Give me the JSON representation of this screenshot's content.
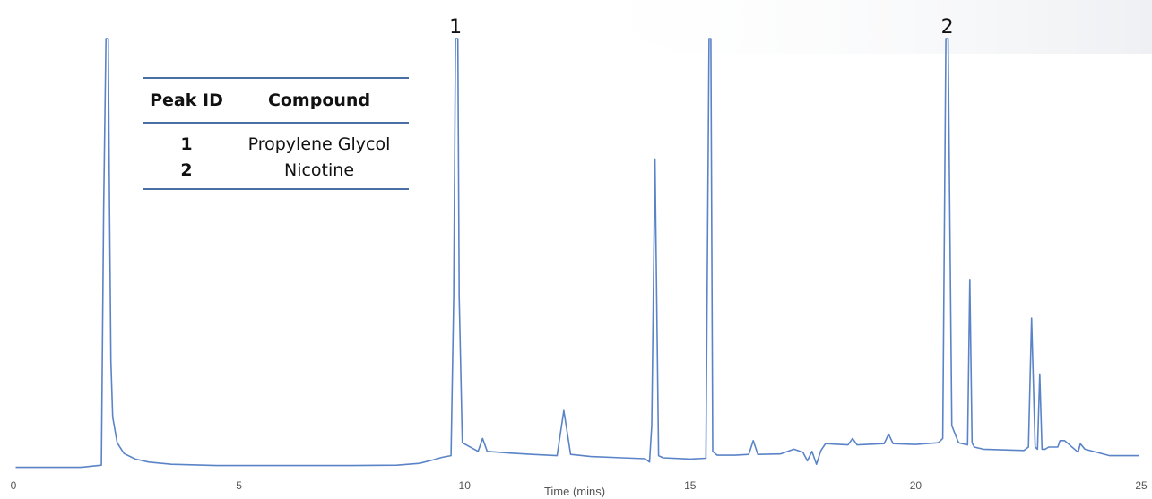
{
  "chart_data": {
    "type": "line",
    "title": "",
    "xlabel": "Time (mins)",
    "ylabel": "",
    "xlim": [
      0,
      25
    ],
    "ylim": [
      0,
      100
    ],
    "xticks": [
      "0",
      "5",
      "10",
      "15",
      "20",
      "25"
    ],
    "grid": false,
    "line_color": "#5b84c8",
    "peak_labels": [
      {
        "id": "1",
        "x": 9.8
      },
      {
        "id": "2",
        "x": 20.7
      }
    ],
    "series": [
      {
        "x": [
          0.05,
          1.5,
          1.95,
          2.0,
          2.05,
          2.08,
          2.1,
          2.13,
          2.16,
          2.2,
          2.3,
          2.45,
          2.7,
          3.0,
          3.5,
          4.5,
          6.0,
          7.5,
          8.5,
          9.0,
          9.3,
          9.5,
          9.7,
          9.76,
          9.8,
          9.85,
          9.88,
          9.95,
          10.3,
          10.4,
          10.5,
          11.0,
          11.5,
          12.05,
          12.2,
          12.35,
          12.8,
          13.5,
          14.0,
          14.1,
          14.15,
          14.22,
          14.3,
          14.4,
          15.0,
          15.35,
          15.42,
          15.46,
          15.5,
          15.6,
          16.0,
          16.3,
          16.4,
          16.5,
          17.0,
          17.3,
          17.5,
          17.6,
          17.7,
          17.8,
          17.9,
          18.0,
          18.5,
          18.6,
          18.7,
          19.3,
          19.4,
          19.5,
          20.0,
          20.5,
          20.6,
          20.67,
          20.72,
          20.8,
          20.95,
          21.15,
          21.2,
          21.25,
          21.3,
          21.5,
          22.4,
          22.5,
          22.57,
          22.65,
          22.7,
          22.75,
          22.8,
          22.87,
          22.95,
          23.1,
          23.15,
          23.2,
          23.3,
          23.6,
          23.65,
          23.75,
          24.3,
          24.6,
          24.95
        ],
        "y": [
          0.3,
          0.3,
          0.8,
          60,
          100,
          100,
          100,
          60,
          25,
          12,
          6,
          3.5,
          2.2,
          1.5,
          1.0,
          0.7,
          0.7,
          0.7,
          0.8,
          1.2,
          2.0,
          2.6,
          3.0,
          40,
          100,
          100,
          40,
          6,
          4.0,
          7.0,
          4.0,
          3.6,
          3.3,
          3.0,
          13.5,
          3.3,
          2.8,
          2.5,
          2.3,
          1.5,
          10,
          72,
          3,
          2.5,
          2.2,
          2.4,
          100,
          100,
          4,
          3.1,
          3.1,
          3.3,
          6.5,
          3.3,
          3.4,
          4.5,
          3.8,
          1.8,
          4.0,
          1.0,
          4.2,
          5.8,
          5.5,
          7.0,
          5.5,
          5.8,
          8.0,
          5.8,
          5.6,
          6.0,
          7.0,
          100,
          100,
          10,
          6.0,
          5.5,
          44,
          6.0,
          5.0,
          4.5,
          4.2,
          5,
          35,
          5,
          4.5,
          22,
          4.5,
          4.5,
          5.0,
          5.0,
          5.0,
          6.5,
          6.5,
          3.8,
          5.8,
          4.5,
          3.0,
          3.0,
          3.0
        ]
      }
    ]
  },
  "legend_table": {
    "headers": [
      "Peak ID",
      "Compound"
    ],
    "rows": [
      {
        "id": "1",
        "compound": "Propylene Glycol"
      },
      {
        "id": "2",
        "compound": "Nicotine"
      }
    ]
  }
}
